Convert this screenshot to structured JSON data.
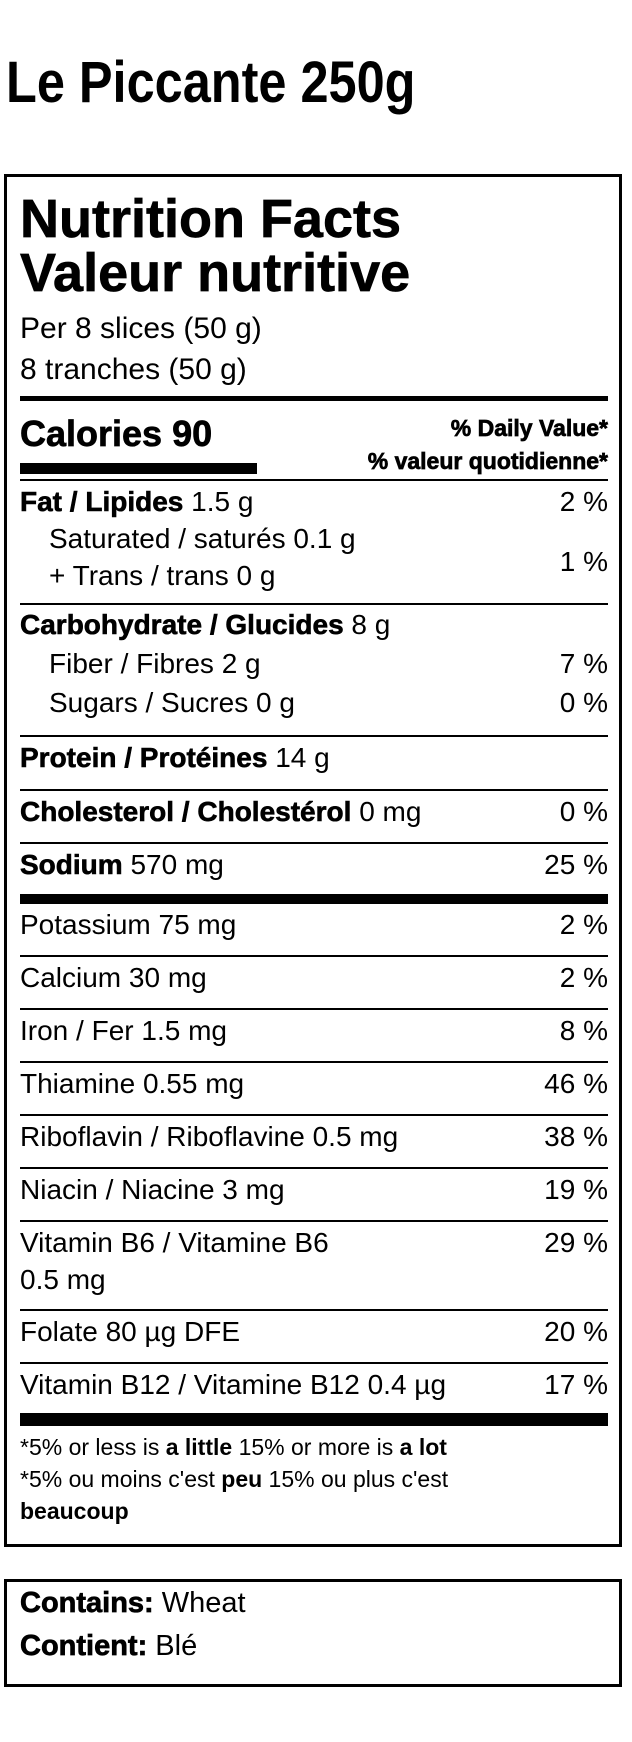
{
  "product_title": "Le Piccante 250g",
  "label": {
    "title_en": "Nutrition Facts",
    "title_fr": "Valeur nutritive",
    "serving_en": "Per 8 slices (50 g)",
    "serving_fr": "8 tranches (50 g)",
    "calories_label": "Calories 90",
    "dv_en": "% Daily Value*",
    "dv_fr": "% valeur quotidienne*",
    "fat": {
      "label": "Fat / Lipides",
      "amount": "1.5 g",
      "pct": "2 %"
    },
    "saturated": {
      "label": "Saturated / saturés 0.1 g"
    },
    "trans": {
      "label": "+ Trans / trans 0 g"
    },
    "sat_trans_pct": "1 %",
    "carb": {
      "label": "Carbohydrate / Glucides",
      "amount": "8 g"
    },
    "fiber": {
      "label": "Fiber / Fibres 2 g",
      "pct": "7 %"
    },
    "sugars": {
      "label": "Sugars / Sucres 0 g",
      "pct": "0 %"
    },
    "protein": {
      "label": "Protein / Protéines",
      "amount": "14 g"
    },
    "cholesterol": {
      "label": "Cholesterol / Cholestérol",
      "amount": "0 mg",
      "pct": "0 %"
    },
    "sodium": {
      "label": "Sodium",
      "amount": "570 mg",
      "pct": "25 %"
    },
    "micros": [
      {
        "label": "Potassium 75 mg",
        "pct": "2 %"
      },
      {
        "label": "Calcium 30 mg",
        "pct": "2 %"
      },
      {
        "label": "Iron / Fer 1.5 mg",
        "pct": "8 %"
      },
      {
        "label": "Thiamine 0.55 mg",
        "pct": "46 %"
      },
      {
        "label": "Riboflavin / Riboflavine 0.5 mg",
        "pct": "38 %"
      },
      {
        "label": "Niacin / Niacine 3 mg",
        "pct": "19 %"
      }
    ],
    "b6": {
      "label": "Vitamin B6 / Vitamine B6",
      "amount": "0.5 mg",
      "pct": "29 %"
    },
    "folate": {
      "label": "Folate 80 µg DFE",
      "pct": "20 %"
    },
    "b12": {
      "label": "Vitamin B12 / Vitamine B12 0.4 µg",
      "pct": "17 %"
    },
    "footnote_en": {
      "a": "*5% or less is ",
      "b": "a little",
      "c": " 15% or more is ",
      "d": "a lot"
    },
    "footnote_fr": {
      "a": "*5% ou moins c'est ",
      "b": "peu",
      "c": " 15% ou plus c'est",
      "d": "beaucoup"
    }
  },
  "allergens": {
    "contains_label": "Contains:",
    "contains_value": " Wheat",
    "contient_label": "Contient:",
    "contient_value": " Blé"
  }
}
